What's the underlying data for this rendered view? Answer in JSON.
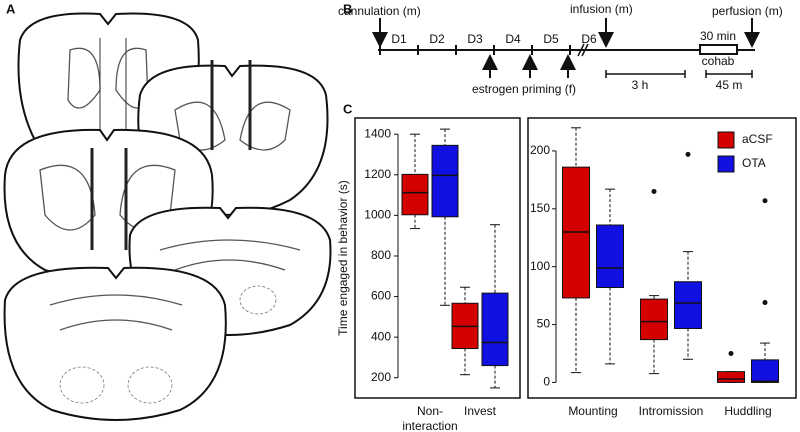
{
  "panels": {
    "a": "A",
    "b": "B",
    "c": "C"
  },
  "timeline": {
    "cannulation": "cannulation (m)",
    "infusion": "infusion (m)",
    "perfusion": "perfusion (m)",
    "days": [
      "D1",
      "D2",
      "D3",
      "D4",
      "D5",
      "D6"
    ],
    "cohab_duration": "30 min",
    "cohab": "cohab",
    "priming": "estrogen priming (f)",
    "scale_long": "3 h",
    "scale_short": "45 m"
  },
  "chart_data": [
    {
      "type": "box",
      "ylabel": "Time engaged in behavior (s)",
      "categories": [
        [
          "Non-",
          "interaction"
        ],
        [
          "Invest"
        ]
      ],
      "ylim": [
        120,
        1460
      ],
      "yticks": [
        200,
        400,
        600,
        800,
        1000,
        1200,
        1400
      ],
      "series": [
        {
          "name": "aCSF",
          "color": "#d40000",
          "boxes": [
            {
              "whislo": 935,
              "q1": 1003,
              "med": 1112,
              "q3": 1202,
              "whishi": 1400
            },
            {
              "whislo": 215,
              "q1": 344,
              "med": 453,
              "q3": 567,
              "whishi": 646
            }
          ]
        },
        {
          "name": "OTA",
          "color": "#1010e0",
          "boxes": [
            {
              "whislo": 557,
              "q1": 993,
              "med": 1197,
              "q3": 1345,
              "whishi": 1425
            },
            {
              "whislo": 150,
              "q1": 260,
              "med": 374,
              "q3": 617,
              "whishi": 954
            }
          ]
        }
      ]
    },
    {
      "type": "box",
      "legend": "upper right",
      "categories": [
        [
          "Mounting"
        ],
        [
          "Intromission"
        ],
        [
          "Huddling"
        ]
      ],
      "ylim": [
        -10,
        225
      ],
      "yticks": [
        0,
        50,
        100,
        150,
        200
      ],
      "series": [
        {
          "name": "aCSF",
          "color": "#d40000",
          "boxes": [
            {
              "whislo": 8.5,
              "q1": 73,
              "med": 130,
              "q3": 186,
              "whishi": 220,
              "outliers": []
            },
            {
              "whislo": 7.6,
              "q1": 37,
              "med": 52.5,
              "q3": 72,
              "whishi": 75,
              "outliers": [
                165
              ]
            },
            {
              "whislo": 0,
              "q1": 0,
              "med": 3,
              "q3": 9.3,
              "whishi": 9.3,
              "outliers": [
                25
              ]
            }
          ]
        },
        {
          "name": "OTA",
          "color": "#1010e0",
          "boxes": [
            {
              "whislo": 16,
              "q1": 82,
              "med": 99,
              "q3": 136,
              "whishi": 167,
              "outliers": []
            },
            {
              "whislo": 20,
              "q1": 46.6,
              "med": 68.6,
              "q3": 87,
              "whishi": 113,
              "outliers": [
                197
              ]
            },
            {
              "whislo": 0,
              "q1": 0,
              "med": 1,
              "q3": 19.5,
              "whishi": 34,
              "outliers": [
                157,
                69
              ]
            }
          ]
        }
      ]
    }
  ]
}
